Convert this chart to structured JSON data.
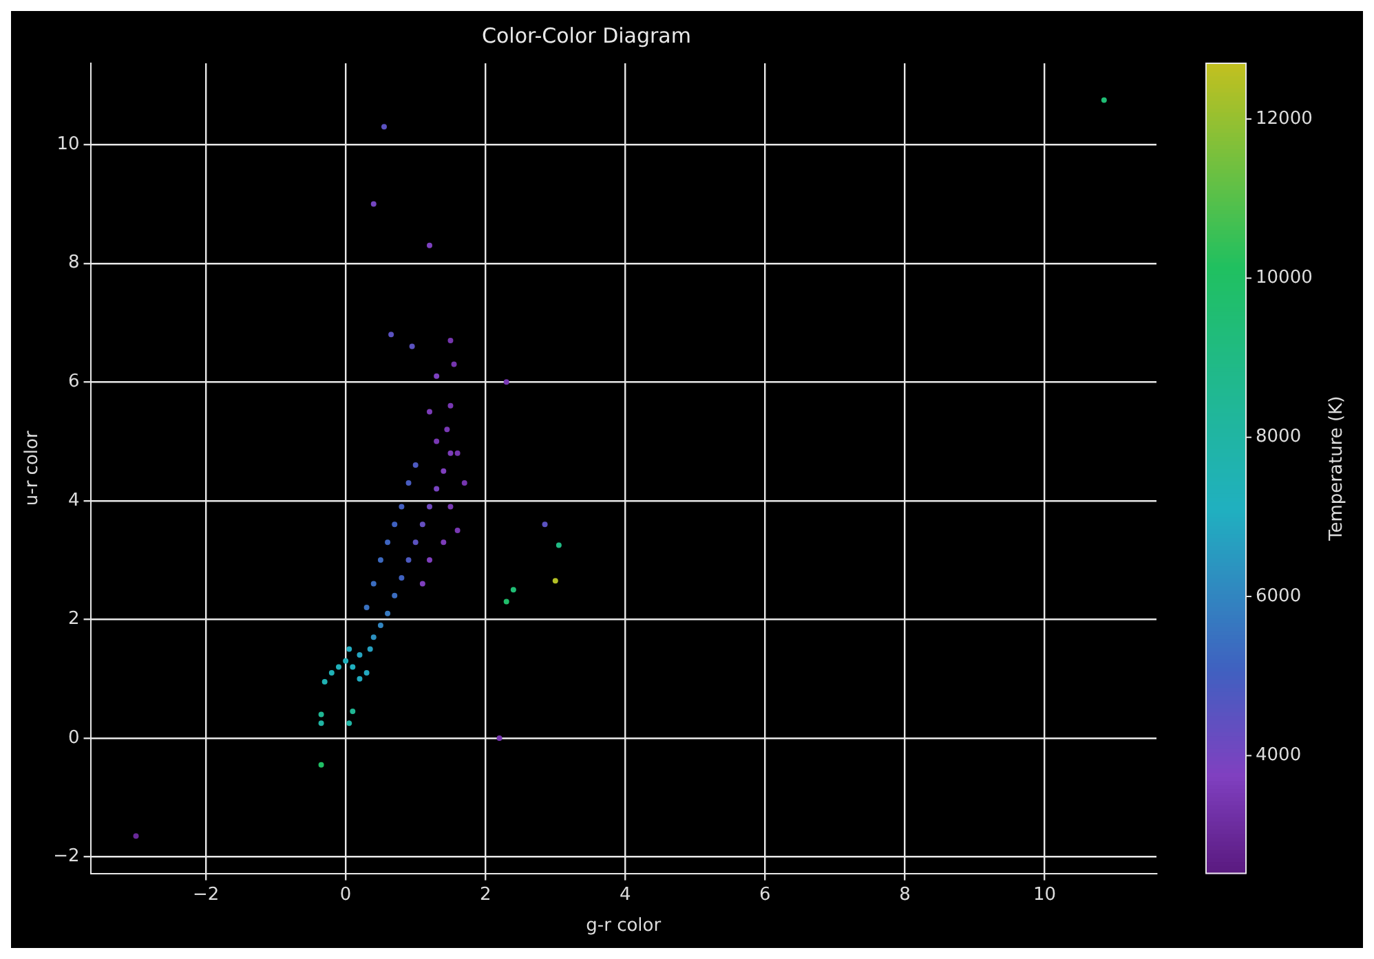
{
  "chart_data": {
    "type": "scatter",
    "title": "Color-Color Diagram",
    "xlabel": "g-r color",
    "ylabel": "u-r color",
    "clabel": "Temperature (K)",
    "marker": "circle",
    "grid": true,
    "x": [
      -0.3,
      -0.2,
      -0.1,
      0,
      0.1,
      0.2,
      0.3,
      0.05,
      0.2,
      0.35,
      0.4,
      0.5,
      0.6,
      0.7,
      0.8,
      0.9,
      1.0,
      1.1,
      1.2,
      1.3,
      1.4,
      1.5,
      1.45,
      1.5,
      0.3,
      0.4,
      0.5,
      0.6,
      0.7,
      0.8,
      0.9,
      1.0,
      1.1,
      1.2,
      1.4,
      1.6,
      1.5,
      1.7,
      1.6,
      1.3,
      1.2,
      1.55,
      1.5,
      10.85,
      0.55,
      0.4,
      1.2,
      -3.0,
      3.0,
      3.05,
      2.4,
      2.3,
      2.85,
      -0.35,
      -0.35,
      -0.35,
      0.05,
      0.1,
      2.2,
      0.65,
      0.95,
      1.3,
      2.3
    ],
    "values": [
      0.95,
      1.1,
      1.2,
      1.3,
      1.2,
      1.0,
      1.1,
      1.5,
      1.4,
      1.5,
      1.7,
      1.9,
      2.1,
      2.4,
      2.7,
      3.0,
      3.3,
      3.6,
      3.9,
      4.2,
      4.5,
      4.8,
      5.2,
      5.6,
      2.2,
      2.6,
      3.0,
      3.3,
      3.6,
      3.9,
      4.3,
      4.6,
      2.6,
      3.0,
      3.3,
      3.5,
      3.9,
      4.3,
      4.8,
      5.0,
      5.5,
      6.3,
      6.7,
      10.75,
      10.3,
      9.0,
      8.3,
      -1.65,
      2.65,
      3.25,
      2.5,
      2.3,
      3.6,
      -0.45,
      0.4,
      0.25,
      0.25,
      0.45,
      0,
      6.8,
      6.6,
      6.1,
      6.0
    ],
    "cvalues": [
      7500,
      7400,
      7300,
      7200,
      7100,
      7000,
      6900,
      7000,
      6800,
      6700,
      6300,
      6000,
      5700,
      5400,
      5100,
      4800,
      4500,
      4300,
      4100,
      3900,
      3700,
      3600,
      3500,
      3500,
      5500,
      5400,
      5300,
      5200,
      5100,
      5000,
      4900,
      4800,
      3700,
      3700,
      3600,
      3500,
      3500,
      3400,
      3400,
      3500,
      3600,
      3400,
      3400,
      9500,
      4500,
      4000,
      3800,
      3000,
      12500,
      9000,
      9500,
      9800,
      4500,
      10000,
      8500,
      8000,
      8000,
      8500,
      3500,
      4500,
      4500,
      3800,
      3500
    ],
    "xlim": [
      -3.65,
      11.6
    ],
    "ylim": [
      -2.28,
      11.37
    ],
    "xticks": [
      {
        "value": -2,
        "label": "−2"
      },
      0,
      2,
      4,
      6,
      8,
      10
    ],
    "yticks": [
      {
        "value": -2,
        "label": "−2"
      },
      0,
      2,
      4,
      6,
      8,
      10
    ],
    "clim": [
      2520,
      12700
    ],
    "cticks": [
      4000,
      6000,
      8000,
      10000,
      12000
    ]
  }
}
